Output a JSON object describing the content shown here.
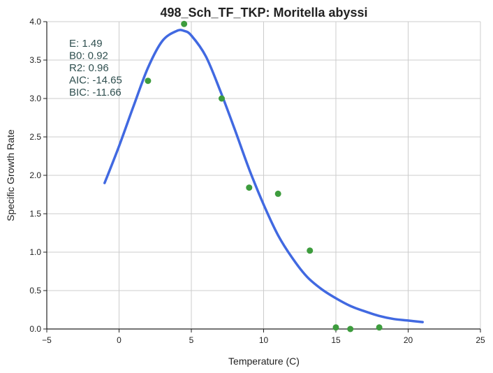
{
  "chart_data": {
    "type": "scatter",
    "title": "498_Sch_TF_TKP: Moritella abyssi",
    "xlabel": "Temperature (C)",
    "ylabel": "Specific Growth Rate",
    "xlim": [
      -5,
      25
    ],
    "ylim": [
      0,
      4
    ],
    "xticks": [
      -5,
      0,
      5,
      10,
      15,
      20,
      25
    ],
    "xtick_labels": [
      "−5",
      "0",
      "5",
      "10",
      "15",
      "20",
      "25"
    ],
    "yticks": [
      0,
      0.5,
      1,
      1.5,
      2,
      2.5,
      3,
      3.5,
      4
    ],
    "ytick_labels": [
      "0.0",
      "0.5",
      "1.0",
      "1.5",
      "2.0",
      "2.5",
      "3.0",
      "3.5",
      "4.0"
    ],
    "grid": true,
    "points": {
      "x": [
        2.0,
        4.5,
        7.1,
        9.0,
        11.0,
        13.2,
        15.0,
        16.0,
        18.0
      ],
      "y": [
        3.23,
        3.97,
        3.0,
        1.84,
        1.76,
        1.02,
        0.02,
        0.0,
        0.02
      ],
      "color": "#3d9c3d"
    },
    "fit_curve": {
      "x": [
        -1,
        0,
        1,
        2,
        3,
        4,
        4.5,
        5,
        6,
        7,
        8,
        9,
        10,
        11,
        12,
        13,
        14,
        15,
        16,
        17,
        18,
        19,
        20,
        21
      ],
      "y": [
        1.9,
        2.38,
        2.9,
        3.4,
        3.75,
        3.88,
        3.88,
        3.82,
        3.55,
        3.1,
        2.6,
        2.08,
        1.62,
        1.22,
        0.92,
        0.68,
        0.52,
        0.4,
        0.3,
        0.23,
        0.17,
        0.13,
        0.11,
        0.09
      ],
      "color": "#4169e1"
    },
    "annotation": {
      "lines": [
        "E:  1.49",
        "B0:  0.92",
        "R2:  0.96",
        "AIC: -14.65",
        "BIC: -11.66"
      ],
      "color": "#2f4f4f"
    }
  }
}
